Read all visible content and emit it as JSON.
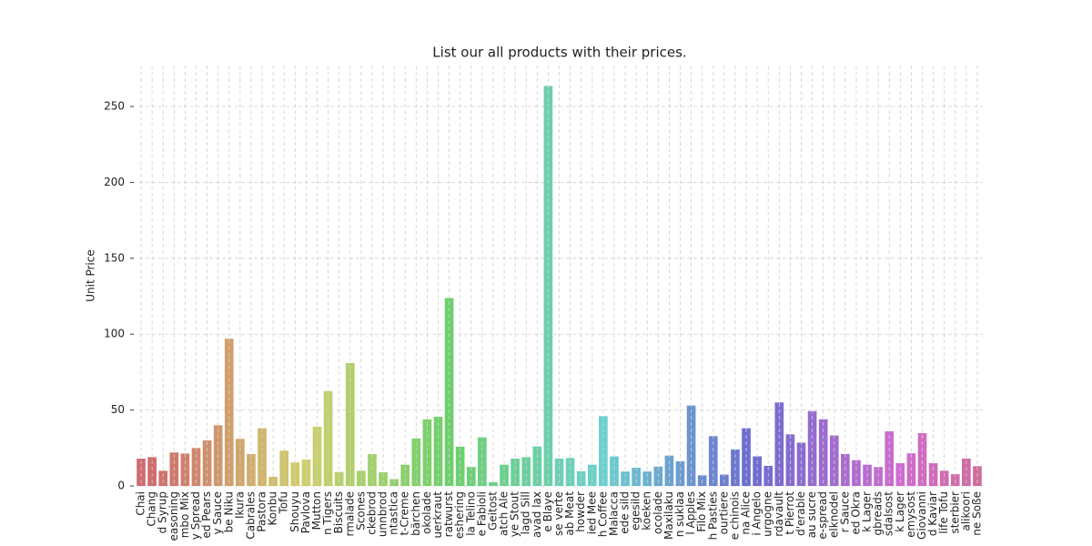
{
  "chart_data": {
    "type": "bar",
    "title": "List our all products with their prices.",
    "y_label": "Unit Price",
    "categories": [
      "Chai",
      "Chang",
      "d Syrup",
      "easoning",
      "mbo Mix",
      "y Spread",
      "ed Pears",
      "y Sauce",
      "be Niku",
      "Ikura",
      "Cabrales",
      "Pastora",
      "Konbu",
      "Tofu",
      "Shouyu",
      "Pavlova",
      "Mutton",
      "n Tigers",
      "Biscuits",
      "rmalade",
      "Scones",
      "ckebrod",
      "unnbrod",
      "ntastica",
      "t-Creme",
      "bärchen",
      "okolade",
      "uerkraut",
      "ratwurst",
      "eshering",
      "la Telino",
      "e Fabioli",
      "Geitost",
      "atch Ale",
      "ye Stout",
      "lagd Sill",
      "avad lax",
      "e Blaye",
      "se verte",
      "ab Meat",
      "howder",
      "ied Mee",
      "h Coffee",
      "Malacca",
      "ede sild",
      "egesild",
      "koeken",
      "ocolade",
      "Maxilaku",
      "n suklaa",
      "l Apples",
      "Filo Mix",
      "h Pasties",
      "ourtiere",
      "e chinois",
      "na Alice",
      "i Angelo",
      "urgogne",
      "rdavault",
      "t Pierrot",
      "d'erable",
      "au sucre",
      "e-spread",
      "elknodel",
      "r Sauce",
      "ed Okra",
      "k Lager",
      "gbreads",
      "sdalsost",
      "k Lager",
      "emysost",
      "Giovanni",
      "d Kaviar",
      "life Tofu",
      "sterbier",
      "alikoori",
      "ne Soße"
    ],
    "values": [
      18,
      19,
      10,
      22,
      21.35,
      25,
      30,
      40,
      97,
      31,
      21,
      38,
      6,
      23.25,
      15.5,
      17.45,
      39,
      62.5,
      9.2,
      81,
      10,
      21,
      9,
      4.5,
      14,
      31.23,
      43.9,
      45.6,
      123.79,
      25.89,
      12.5,
      32,
      2.5,
      14,
      18,
      19,
      26,
      263.5,
      18,
      18.4,
      9.65,
      14,
      46,
      19.45,
      9.5,
      12,
      9.5,
      12.75,
      20,
      16.25,
      53,
      7,
      32.8,
      7.45,
      24,
      38,
      19.5,
      13.25,
      55,
      34,
      28.5,
      49.3,
      43.9,
      33.25,
      21.05,
      17,
      14,
      12.5,
      36,
      15,
      21.5,
      34.8,
      15,
      10,
      7.75,
      18,
      13
    ],
    "palette": "husl",
    "ylim": [
      0,
      277
    ],
    "yticks": [
      0,
      50,
      100,
      150,
      200,
      250
    ],
    "grid": true
  }
}
